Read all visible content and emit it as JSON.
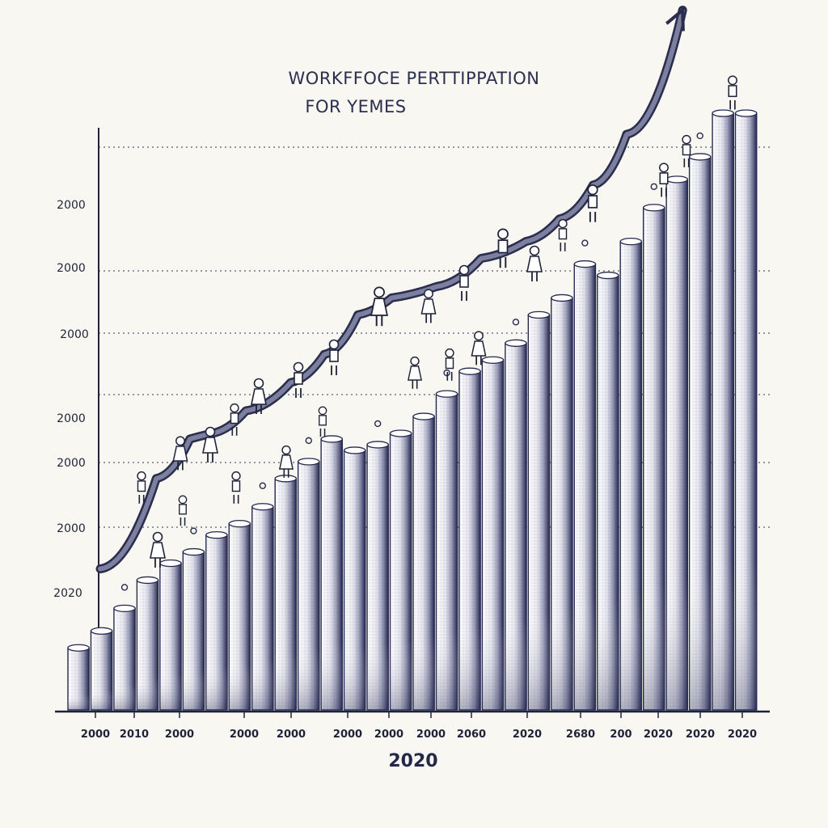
{
  "chart_data": {
    "type": "bar",
    "title": [
      "WORKFFOCE PERTTIPPATION",
      "FOR YEMES"
    ],
    "xlabel": "2020",
    "ylabel": "",
    "y_tick_labels": [
      "2000",
      "2000",
      "2000",
      "2000",
      "2000",
      "2000",
      "2020"
    ],
    "x_tick_labels": [
      "2000",
      "2010",
      "2000",
      "2000",
      "2000",
      "2000",
      "2000",
      "2000",
      "2060",
      "2020",
      "2680",
      "200",
      "2020",
      "2020",
      "2020"
    ],
    "ylim": [
      0,
      100
    ],
    "grid": "dotted-horizontal",
    "bar_values": [
      11,
      14,
      18,
      23,
      26,
      28,
      31,
      33,
      36,
      41,
      44,
      48,
      46,
      47,
      49,
      52,
      56,
      60,
      62,
      65,
      70,
      73,
      79,
      77,
      83,
      89,
      94,
      98,
      108,
      108
    ],
    "trend_line": {
      "x_index": [
        0,
        2.5,
        4,
        5,
        6.5,
        8.5,
        10,
        11.5,
        13,
        15,
        17,
        19,
        20.5,
        22,
        23.5,
        26
      ],
      "values": [
        25,
        41,
        48,
        49,
        53,
        58,
        63,
        70,
        73,
        75,
        80,
        83,
        87,
        93,
        102,
        124
      ]
    },
    "annotation": "upward-arrow",
    "colors": {
      "bar_dark": "#26294f",
      "bar_light": "#ffffff",
      "line": "#2a2d4d",
      "ink": "#1f2338"
    },
    "icons": [
      "person-figure-icon",
      "arrow-head-icon"
    ]
  }
}
